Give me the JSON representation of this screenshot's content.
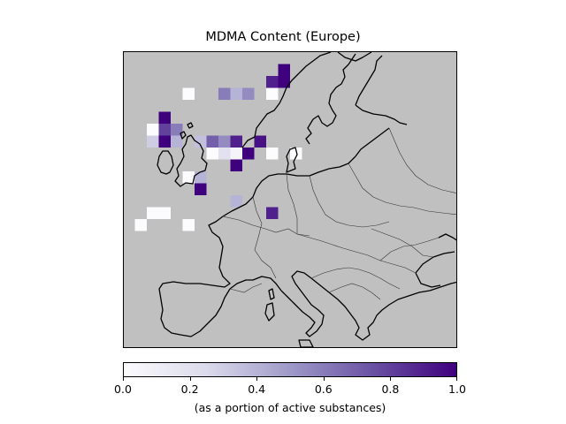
{
  "title": "MDMA Content (Europe)",
  "colorbar": {
    "label": "(as a portion of active substances)",
    "ticks": [
      "0.0",
      "0.2",
      "0.4",
      "0.6",
      "0.8",
      "1.0"
    ],
    "range": [
      0,
      1
    ],
    "colormap": [
      "#fcfbfd",
      "#dadaeb",
      "#9e9ac8",
      "#6a51a3",
      "#3f007d"
    ]
  },
  "colors": {
    "land": "#c0c0c0",
    "coast": "#000000",
    "border": "#333333"
  },
  "chart_data": {
    "type": "heatmap",
    "title": "MDMA Content (Europe)",
    "colorbar_label": "(as a portion of active substances)",
    "value_range": [
      0,
      1
    ],
    "cells": [
      {
        "col": 13,
        "row": 1,
        "value": 1.0
      },
      {
        "col": 12,
        "row": 2,
        "value": 0.9
      },
      {
        "col": 13,
        "row": 2,
        "value": 1.0
      },
      {
        "col": 5,
        "row": 3,
        "value": 0.0
      },
      {
        "col": 8,
        "row": 3,
        "value": 0.6
      },
      {
        "col": 9,
        "row": 3,
        "value": 0.4
      },
      {
        "col": 10,
        "row": 3,
        "value": 0.55
      },
      {
        "col": 12,
        "row": 3,
        "value": 0.0
      },
      {
        "col": 3,
        "row": 5,
        "value": 1.0
      },
      {
        "col": 2,
        "row": 6,
        "value": 0.0
      },
      {
        "col": 3,
        "row": 6,
        "value": 0.8
      },
      {
        "col": 4,
        "row": 6,
        "value": 0.6
      },
      {
        "col": 2,
        "row": 7,
        "value": 0.3
      },
      {
        "col": 3,
        "row": 7,
        "value": 1.0
      },
      {
        "col": 4,
        "row": 7,
        "value": 0.4
      },
      {
        "col": 6,
        "row": 7,
        "value": 0.35
      },
      {
        "col": 7,
        "row": 7,
        "value": 0.7
      },
      {
        "col": 8,
        "row": 7,
        "value": 0.55
      },
      {
        "col": 9,
        "row": 7,
        "value": 0.9
      },
      {
        "col": 11,
        "row": 7,
        "value": 0.95
      },
      {
        "col": 7,
        "row": 8,
        "value": 0.0
      },
      {
        "col": 8,
        "row": 8,
        "value": 0.2
      },
      {
        "col": 9,
        "row": 8,
        "value": 0.05
      },
      {
        "col": 10,
        "row": 8,
        "value": 1.0
      },
      {
        "col": 12,
        "row": 8,
        "value": 0.0
      },
      {
        "col": 14,
        "row": 8,
        "value": 0.0
      },
      {
        "col": 9,
        "row": 9,
        "value": 1.0
      },
      {
        "col": 5,
        "row": 10,
        "value": 0.0
      },
      {
        "col": 6,
        "row": 10,
        "value": 0.4
      },
      {
        "col": 6,
        "row": 11,
        "value": 1.0
      },
      {
        "col": 9,
        "row": 12,
        "value": 0.4
      },
      {
        "col": 2,
        "row": 13,
        "value": 0.0
      },
      {
        "col": 3,
        "row": 13,
        "value": 0.0
      },
      {
        "col": 12,
        "row": 13,
        "value": 0.9
      },
      {
        "col": 1,
        "row": 14,
        "value": 0.0
      },
      {
        "col": 5,
        "row": 14,
        "value": 0.0
      }
    ]
  }
}
